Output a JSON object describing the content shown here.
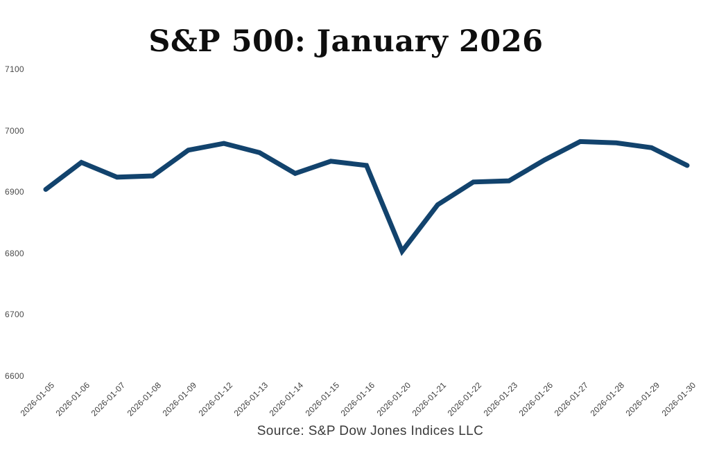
{
  "chart_data": {
    "type": "line",
    "title": "S&P 500: January 2026",
    "x": [
      "2026-01-05",
      "2026-01-06",
      "2026-01-07",
      "2026-01-08",
      "2026-01-09",
      "2026-01-12",
      "2026-01-13",
      "2026-01-14",
      "2026-01-15",
      "2026-01-16",
      "2026-01-20",
      "2026-01-21",
      "2026-01-22",
      "2026-01-23",
      "2026-01-26",
      "2026-01-27",
      "2026-01-28",
      "2026-01-29",
      "2026-01-30"
    ],
    "values": [
      6904,
      6948,
      6924,
      6926,
      6968,
      6979,
      6964,
      6930,
      6950,
      6943,
      6803,
      6879,
      6916,
      6918,
      6952,
      6982,
      6980,
      6972,
      6943
    ],
    "xlabel": "",
    "ylabel": "",
    "ylim": [
      6600,
      7100
    ],
    "y_ticks": [
      6600,
      6700,
      6800,
      6900,
      7000,
      7100
    ],
    "grid": false,
    "legend": "none",
    "line_color": "#12436d",
    "source": "Source: S&P Dow Jones Indices LLC"
  }
}
